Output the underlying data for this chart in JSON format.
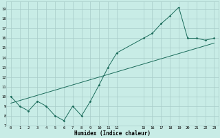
{
  "xlabel": "Humidex (Indice chaleur)",
  "bg_color": "#c8ece6",
  "line_color": "#1a6b5a",
  "grid_color": "#a8ccc8",
  "xlim": [
    -0.5,
    23.5
  ],
  "ylim": [
    7.0,
    19.8
  ],
  "xticks": [
    0,
    1,
    2,
    3,
    4,
    5,
    6,
    7,
    8,
    9,
    10,
    11,
    12,
    15,
    16,
    17,
    18,
    19,
    20,
    21,
    22,
    23
  ],
  "yticks": [
    7,
    8,
    9,
    10,
    11,
    12,
    13,
    14,
    15,
    16,
    17,
    18,
    19
  ],
  "data_x": [
    0,
    1,
    2,
    3,
    4,
    5,
    6,
    7,
    8,
    9,
    10,
    11,
    12,
    15,
    16,
    17,
    18,
    19,
    20,
    21,
    22,
    23
  ],
  "data_y": [
    10.0,
    9.0,
    8.5,
    9.5,
    9.0,
    8.0,
    7.5,
    9.0,
    8.0,
    9.5,
    11.2,
    13.0,
    14.5,
    16.0,
    16.5,
    17.5,
    18.3,
    19.2,
    16.0,
    16.0,
    15.8,
    16.0
  ],
  "trend_x": [
    0,
    23
  ],
  "trend_y": [
    9.3,
    15.5
  ]
}
